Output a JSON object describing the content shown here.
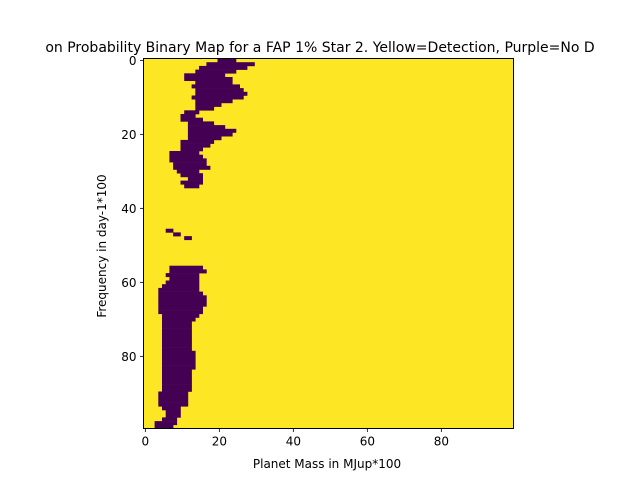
{
  "chart_data": {
    "type": "heatmap",
    "title": "on Probability Binary Map for a FAP 1% Star 2. Yellow=Detection, Purple=No D",
    "xlabel": "Planet Mass in MJup*100",
    "ylabel": "Frequency in day-1*100",
    "xlim": [
      0,
      99
    ],
    "ylim": [
      99,
      0
    ],
    "x_ticks": [
      "0",
      "20",
      "40",
      "60",
      "80"
    ],
    "y_ticks": [
      "0",
      "20",
      "40",
      "60",
      "80"
    ],
    "detection_color": "#fde725",
    "no_detection_color": "#440154",
    "default_value": "detection",
    "no_detection_runs": [
      [
        0,
        20,
        24
      ],
      [
        1,
        17,
        29
      ],
      [
        2,
        15,
        27
      ],
      [
        3,
        14,
        24
      ],
      [
        4,
        11,
        21
      ],
      [
        5,
        11,
        23
      ],
      [
        6,
        14,
        23
      ],
      [
        7,
        13,
        25
      ],
      [
        8,
        14,
        26
      ],
      [
        9,
        14,
        27
      ],
      [
        10,
        13,
        26
      ],
      [
        11,
        14,
        23
      ],
      [
        12,
        14,
        20
      ],
      [
        13,
        14,
        18
      ],
      [
        14,
        11,
        14
      ],
      [
        15,
        10,
        13
      ],
      [
        16,
        10,
        15
      ],
      [
        17,
        12,
        18
      ],
      [
        18,
        12,
        21
      ],
      [
        19,
        12,
        24
      ],
      [
        20,
        12,
        23
      ],
      [
        21,
        12,
        20
      ],
      [
        22,
        10,
        18
      ],
      [
        23,
        10,
        17
      ],
      [
        24,
        10,
        15
      ],
      [
        25,
        7,
        14
      ],
      [
        26,
        7,
        15
      ],
      [
        27,
        7,
        16
      ],
      [
        28,
        8,
        16
      ],
      [
        29,
        8,
        17
      ],
      [
        30,
        9,
        14
      ],
      [
        31,
        10,
        15
      ],
      [
        32,
        12,
        15
      ],
      [
        33,
        10,
        15
      ],
      [
        34,
        11,
        14
      ],
      [
        46,
        6,
        7
      ],
      [
        47,
        8,
        9
      ],
      [
        48,
        11,
        12
      ],
      [
        56,
        7,
        15
      ],
      [
        57,
        7,
        16
      ],
      [
        58,
        6,
        14
      ],
      [
        59,
        7,
        14
      ],
      [
        60,
        6,
        14
      ],
      [
        61,
        5,
        14
      ],
      [
        62,
        4,
        14
      ],
      [
        63,
        4,
        15
      ],
      [
        64,
        4,
        16
      ],
      [
        65,
        4,
        16
      ],
      [
        66,
        4,
        16
      ],
      [
        67,
        4,
        15
      ],
      [
        68,
        4,
        15
      ],
      [
        69,
        5,
        14
      ],
      [
        70,
        5,
        13
      ],
      [
        71,
        5,
        12
      ],
      [
        72,
        5,
        12
      ],
      [
        73,
        5,
        12
      ],
      [
        74,
        5,
        12
      ],
      [
        75,
        5,
        12
      ],
      [
        76,
        5,
        12
      ],
      [
        77,
        5,
        12
      ],
      [
        78,
        5,
        12
      ],
      [
        79,
        5,
        13
      ],
      [
        80,
        5,
        13
      ],
      [
        81,
        5,
        13
      ],
      [
        82,
        5,
        13
      ],
      [
        83,
        5,
        13
      ],
      [
        84,
        5,
        12
      ],
      [
        85,
        5,
        12
      ],
      [
        86,
        5,
        12
      ],
      [
        87,
        5,
        12
      ],
      [
        88,
        5,
        12
      ],
      [
        89,
        5,
        12
      ],
      [
        90,
        4,
        11
      ],
      [
        91,
        4,
        11
      ],
      [
        92,
        4,
        11
      ],
      [
        93,
        4,
        11
      ],
      [
        94,
        5,
        9
      ],
      [
        95,
        6,
        9
      ],
      [
        96,
        6,
        9
      ],
      [
        97,
        5,
        8
      ],
      [
        98,
        3,
        8
      ],
      [
        99,
        3,
        7
      ]
    ]
  }
}
